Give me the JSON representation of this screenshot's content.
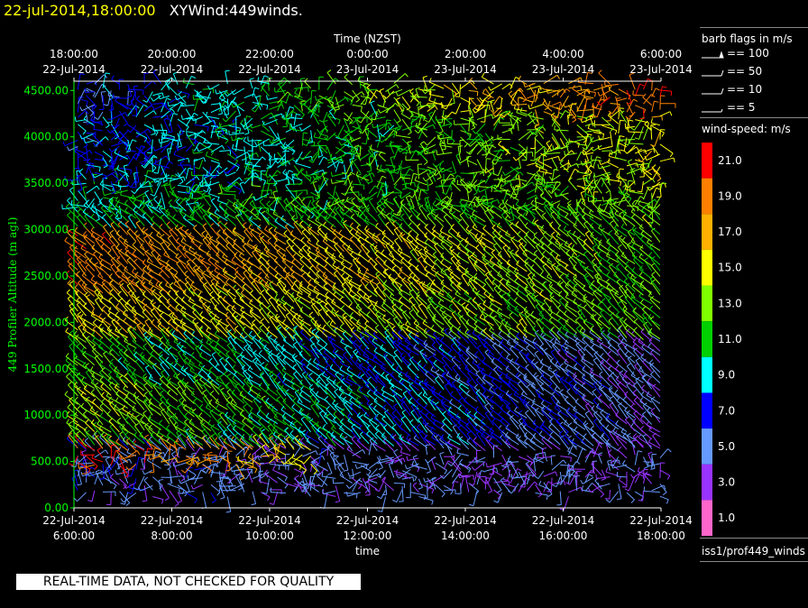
{
  "header": {
    "timestamp": "22-jul-2014,18:00:00",
    "product": "XYWind:449winds."
  },
  "side": {
    "barb_title": "barb flags in m/s",
    "barb_flags": [
      "== 100",
      "== 50",
      "== 10",
      "== 5"
    ],
    "speed_title": "wind-speed: m/s",
    "source": "iss1/prof449_winds"
  },
  "colorbar": {
    "labels": [
      "21.0",
      "19.0",
      "17.0",
      "15.0",
      "13.0",
      "11.0",
      "9.0",
      "7.0",
      "5.0",
      "3.0",
      "1.0"
    ],
    "colors": [
      "#ff0000",
      "#ff8000",
      "#ffb000",
      "#ffff00",
      "#80ff00",
      "#00d000",
      "#00ffff",
      "#0000ff",
      "#6699ff",
      "#9933ff",
      "#ff66cc"
    ]
  },
  "banner": "REAL-TIME DATA, NOT CHECKED FOR QUALITY",
  "chart_data": {
    "type": "scatter",
    "title": "",
    "xlabel": "time",
    "ylabel": "449 Profiler Altitude (m agl)",
    "top_axis_label": "Time (NZST)",
    "x_range": [
      "22-Jul-2014 6:00:00",
      "22-Jul-2014 18:00:00"
    ],
    "ylim": [
      0,
      4600
    ],
    "yticks": [
      "0.00",
      "500.00",
      "1000.00",
      "1500.00",
      "2000.00",
      "2500.00",
      "3000.00",
      "3500.00",
      "4000.00",
      "4500.00"
    ],
    "ytick_values": [
      0,
      500,
      1000,
      1500,
      2000,
      2500,
      3000,
      3500,
      4000,
      4500
    ],
    "xticks_bottom": [
      {
        "date": "22-Jul-2014",
        "time": "6:00:00"
      },
      {
        "date": "22-Jul-2014",
        "time": "8:00:00"
      },
      {
        "date": "22-Jul-2014",
        "time": "10:00:00"
      },
      {
        "date": "22-Jul-2014",
        "time": "12:00:00"
      },
      {
        "date": "22-Jul-2014",
        "time": "14:00:00"
      },
      {
        "date": "22-Jul-2014",
        "time": "16:00:00"
      },
      {
        "date": "22-Jul-2014",
        "time": "18:00:00"
      }
    ],
    "xticks_top": [
      {
        "time": "18:00:00",
        "date": "22-Jul-2014"
      },
      {
        "time": "20:00:00",
        "date": "22-Jul-2014"
      },
      {
        "time": "22:00:00",
        "date": "22-Jul-2014"
      },
      {
        "time": "0:00:00",
        "date": "23-Jul-2014"
      },
      {
        "time": "2:00:00",
        "date": "23-Jul-2014"
      },
      {
        "time": "4:00:00",
        "date": "23-Jul-2014"
      },
      {
        "time": "6:00:00",
        "date": "23-Jul-2014"
      }
    ],
    "hours": [
      6,
      18
    ],
    "wind_layers": [
      {
        "bottom": 0,
        "top": 650,
        "early_speed": 5,
        "late_speed": 4
      },
      {
        "bottom": 450,
        "top": 650,
        "early_speed": 21,
        "late_speed": 7,
        "until_hour": 11
      },
      {
        "bottom": 650,
        "top": 800,
        "early_speed": 13,
        "late_speed": 4
      },
      {
        "bottom": 800,
        "top": 1300,
        "early_speed": 14,
        "late_speed": 4
      },
      {
        "bottom": 1300,
        "top": 1800,
        "early_speed": 12,
        "late_speed": 4
      },
      {
        "bottom": 1800,
        "top": 2300,
        "early_speed": 16,
        "late_speed": 12
      },
      {
        "bottom": 2300,
        "top": 3000,
        "early_speed": 19,
        "late_speed": 12
      },
      {
        "bottom": 3000,
        "top": 3500,
        "early_speed": 10,
        "late_speed": 13
      },
      {
        "bottom": 3500,
        "top": 4250,
        "early_speed": 7,
        "late_speed": 15
      },
      {
        "bottom": 4250,
        "top": 4600,
        "early_speed": 6,
        "late_speed": 20
      }
    ]
  }
}
